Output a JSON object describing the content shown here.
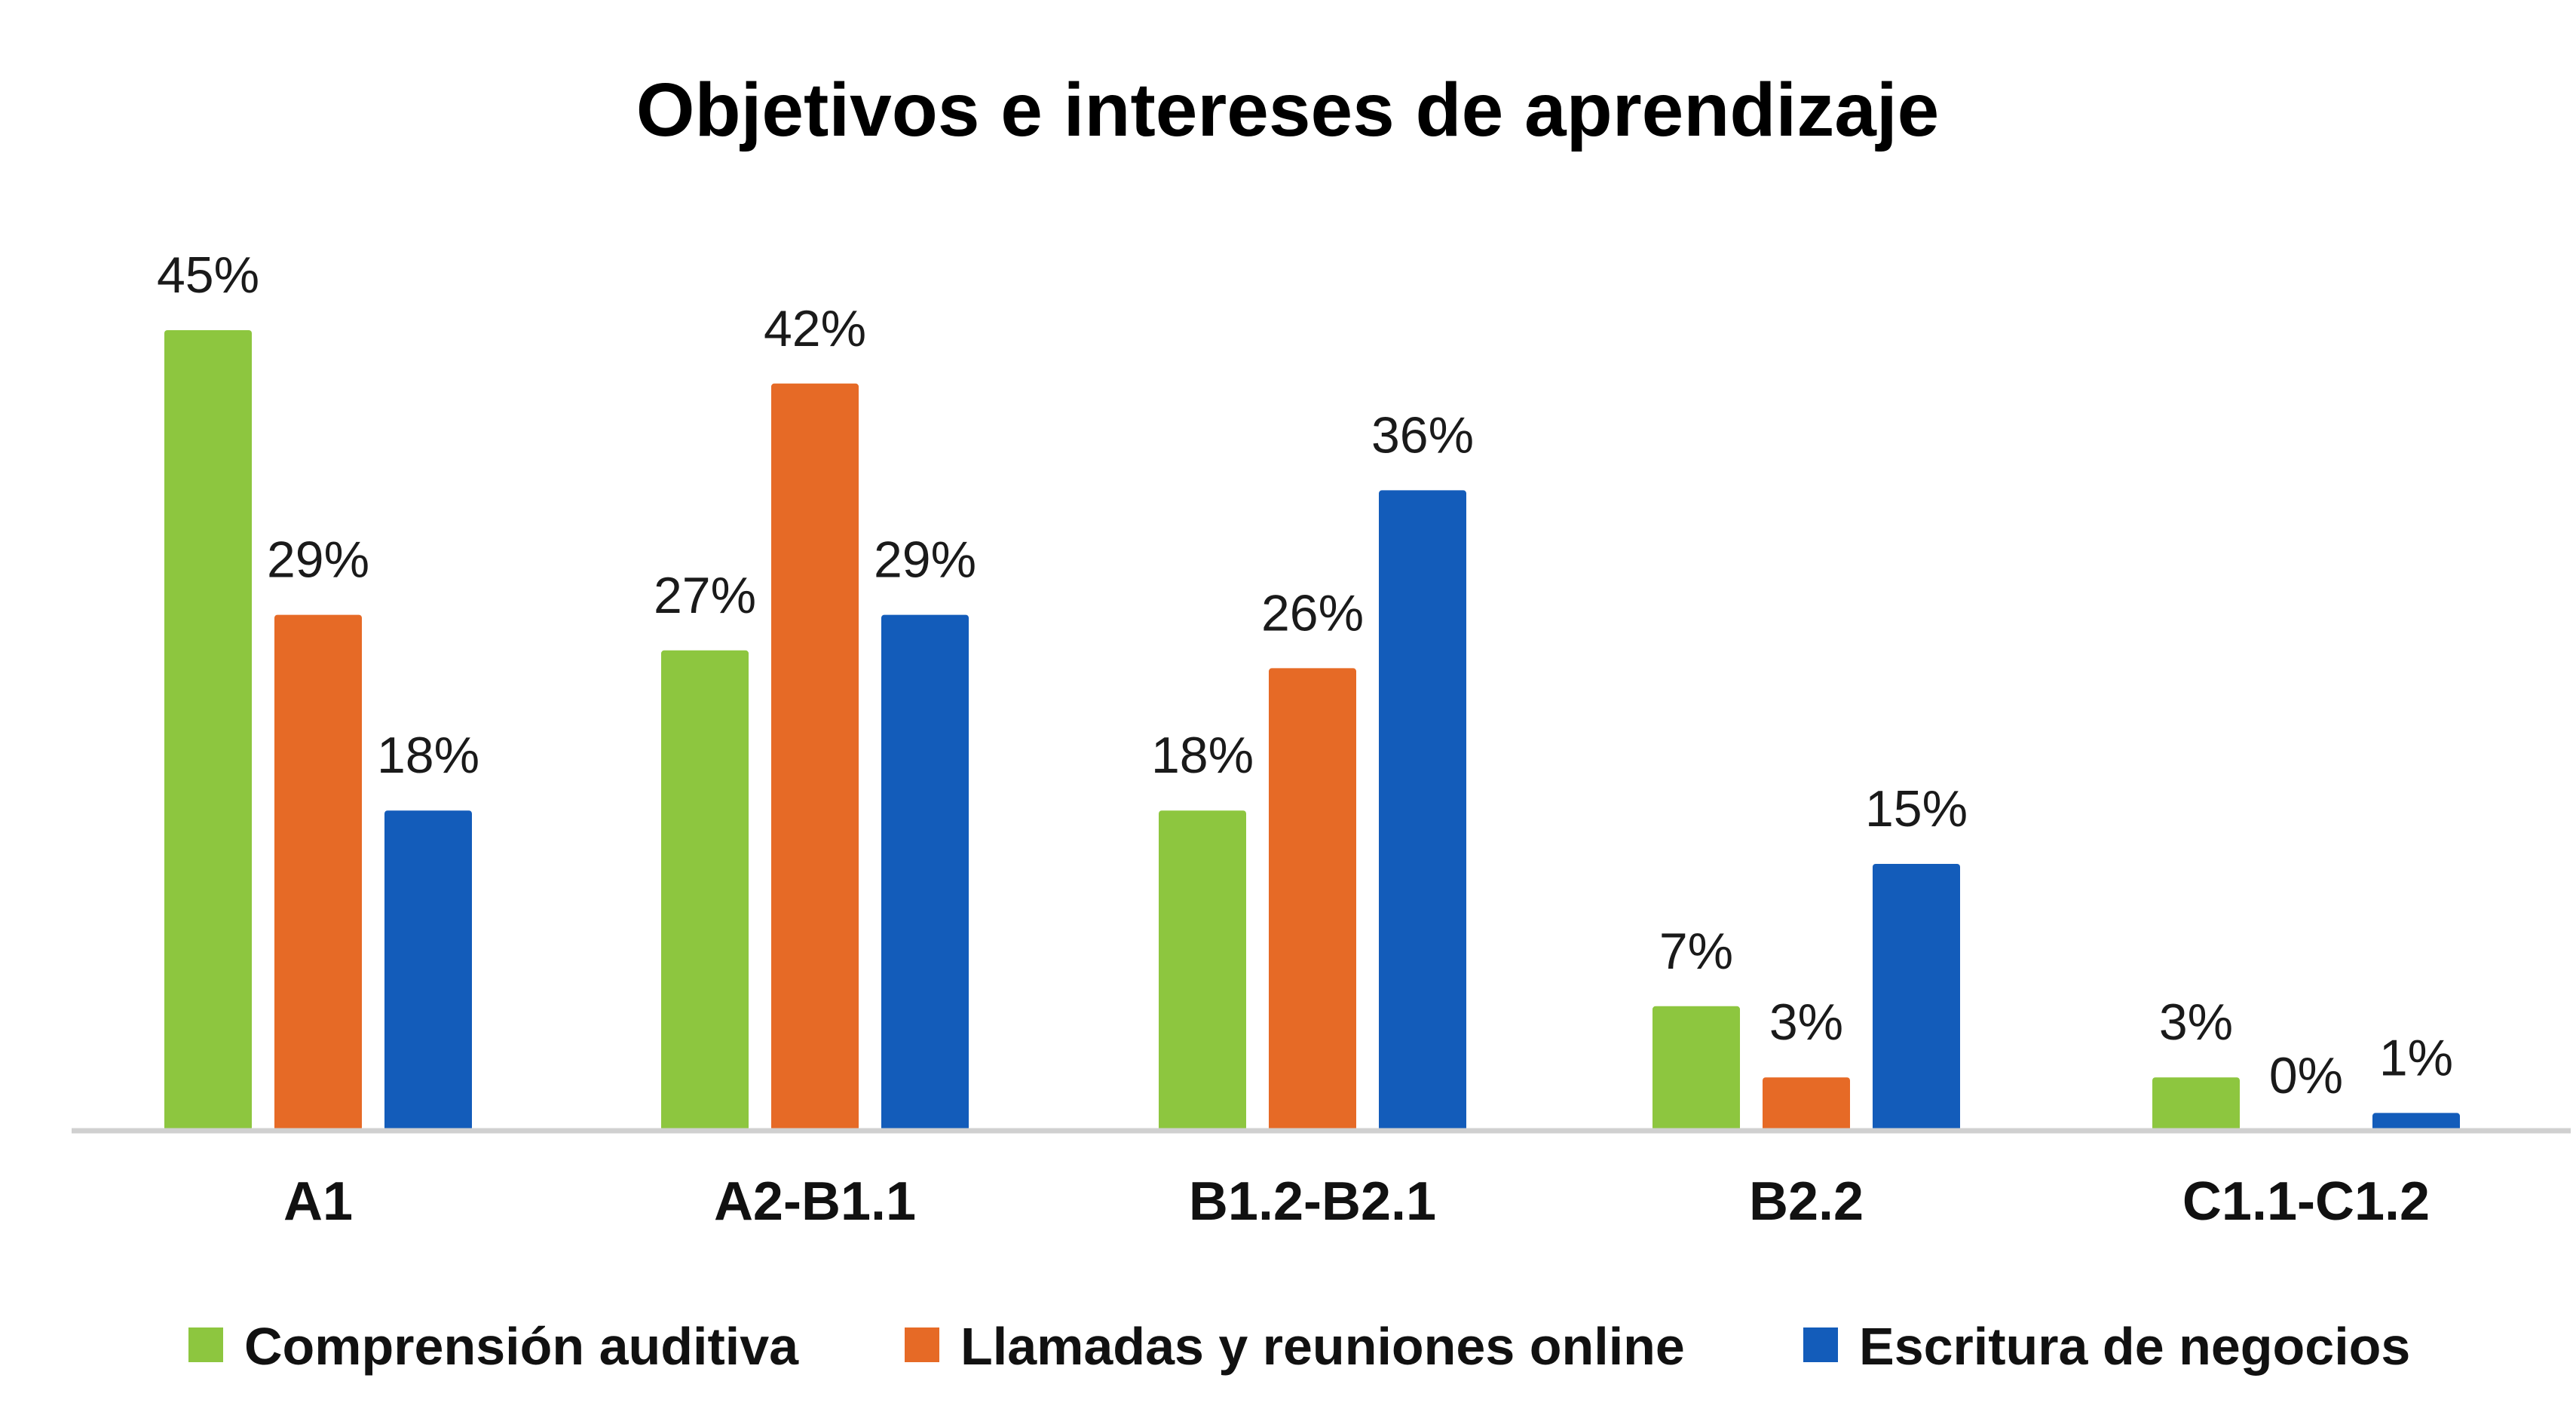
{
  "chart_data": {
    "type": "bar",
    "title": "Objetivos e intereses de aprendizaje",
    "xlabel": "",
    "ylabel": "",
    "ylim": [
      0,
      50
    ],
    "grid": false,
    "legend_position": "bottom",
    "categories": [
      "A1",
      "A2-B1.1",
      "B1.2-B2.1",
      "B2.2",
      "C1.1-C1.2"
    ],
    "series": [
      {
        "name": "Comprensión auditiva",
        "color": "#8dc63f",
        "values": [
          45,
          27,
          18,
          7,
          3
        ],
        "labels": [
          "45%",
          "27%",
          "18%",
          "7%",
          "3%"
        ]
      },
      {
        "name": "Llamadas y reuniones online",
        "color": "#e66a26",
        "values": [
          29,
          42,
          26,
          3,
          0
        ],
        "labels": [
          "29%",
          "42%",
          "26%",
          "3%",
          "0%"
        ]
      },
      {
        "name": "Escritura de negocios",
        "color": "#135cba",
        "values": [
          18,
          29,
          36,
          15,
          1
        ],
        "labels": [
          "18%",
          "29%",
          "36%",
          "15%",
          "1%"
        ]
      }
    ]
  }
}
